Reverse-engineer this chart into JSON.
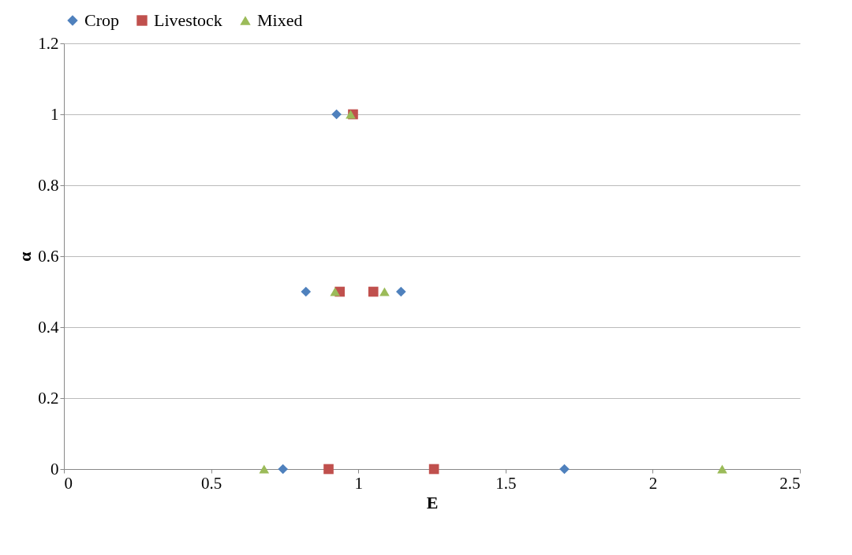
{
  "chart_data": {
    "type": "scatter",
    "xlabel": "E",
    "ylabel": "α",
    "xlim": [
      0,
      2.5
    ],
    "xticks": [
      0,
      0.5,
      1,
      1.5,
      2,
      2.5
    ],
    "ylim": [
      0,
      1.2
    ],
    "yticks": [
      0,
      0.2,
      0.4,
      0.6,
      0.8,
      1,
      1.2
    ],
    "grid": "y",
    "legend": "top",
    "series": [
      {
        "name": "Crop",
        "color": "#4f81bd",
        "marker": "diamond",
        "x": [
          0.926,
          0.822,
          1.145,
          0.744,
          1.7
        ],
        "values": [
          1,
          0.5,
          0.5,
          0,
          0
        ]
      },
      {
        "name": "Livestock",
        "color": "#c0504d",
        "marker": "square",
        "x": [
          0.982,
          0.937,
          1.051,
          0.899,
          1.257
        ],
        "values": [
          1,
          0.5,
          0.5,
          0,
          0
        ]
      },
      {
        "name": "Mixed",
        "color": "#9bbb59",
        "marker": "triangle",
        "x": [
          0.974,
          0.921,
          1.089,
          0.68,
          2.236
        ],
        "values": [
          1,
          0.5,
          0.5,
          0,
          0
        ]
      }
    ]
  }
}
